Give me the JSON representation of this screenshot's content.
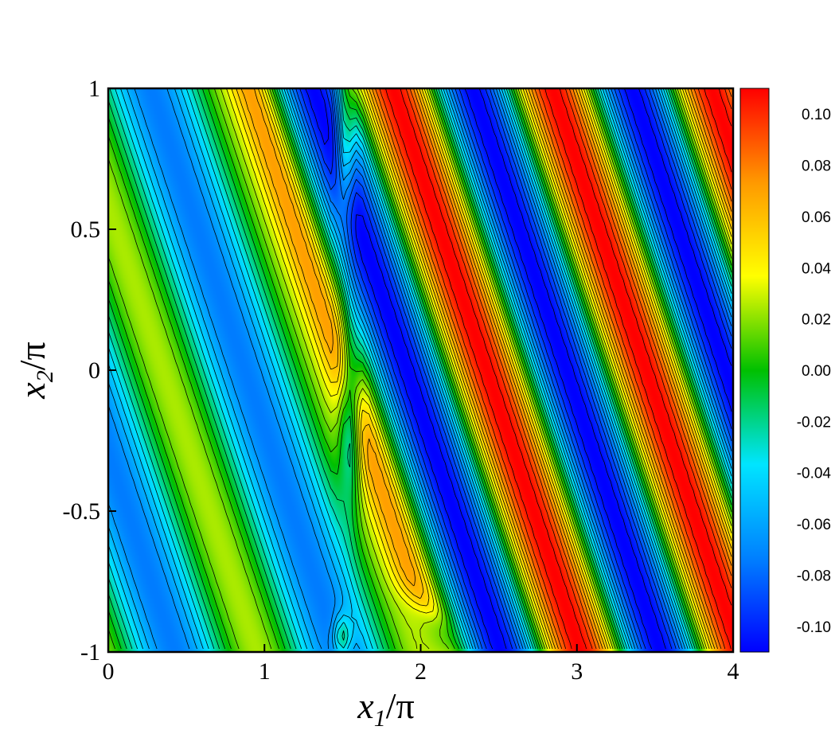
{
  "chart_data": {
    "type": "heatmap",
    "title": "",
    "x_axis": {
      "label_main": "x",
      "label_sub": "1",
      "label_suffix": "/π",
      "range": [
        0,
        4
      ],
      "ticks": [
        0,
        1,
        2,
        3,
        4
      ],
      "tick_labels": [
        "0",
        "1",
        "2",
        "3",
        "4"
      ]
    },
    "y_axis": {
      "label_main": "x",
      "label_sub": "2",
      "label_suffix": "/π",
      "range": [
        -1,
        1
      ],
      "ticks": [
        -1,
        -0.5,
        0,
        0.5,
        1
      ],
      "tick_labels": [
        "-1",
        "-0.5",
        "0",
        "0.5",
        "1"
      ]
    },
    "colorbar": {
      "range": [
        -0.11,
        0.11
      ],
      "ticks": [
        -0.1,
        -0.08,
        -0.06,
        -0.04,
        -0.02,
        0.0,
        0.02,
        0.04,
        0.06,
        0.08,
        0.1
      ],
      "tick_labels": [
        "-0.10",
        "-0.08",
        "-0.06",
        "-0.04",
        "-0.02",
        "0.00",
        "0.02",
        "0.04",
        "0.06",
        "0.08",
        "0.10"
      ],
      "colormap": "jet",
      "colors": [
        "#0000ff",
        "#0080ff",
        "#00e5ff",
        "#00c000",
        "#ffff00",
        "#ff9900",
        "#ff0000"
      ]
    },
    "field": {
      "description_of_pattern": "oblique bands running from upper-left to lower-right",
      "contour_lines": true,
      "contour_count": 22
    }
  }
}
